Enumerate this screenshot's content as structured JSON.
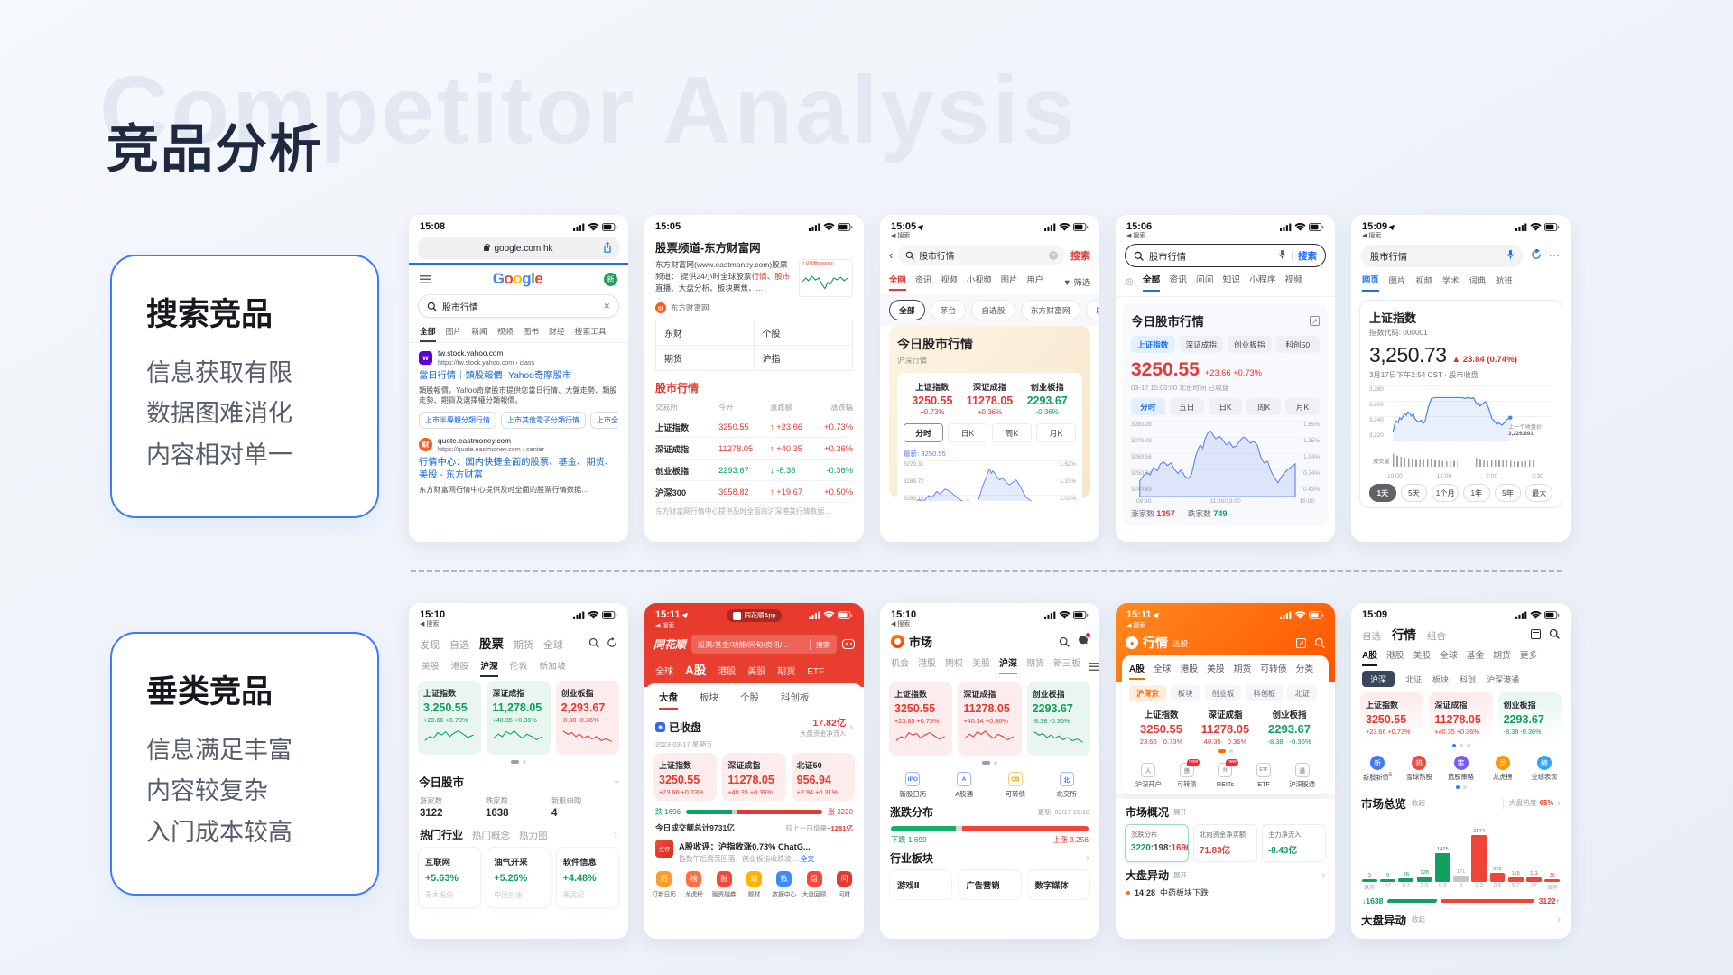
{
  "slide": {
    "title": "竞品分析",
    "watermark": "Competitor Analysis"
  },
  "common": {
    "back_label": "◀ 搜索"
  },
  "cards": [
    {
      "title": "搜索竞品",
      "items": [
        "信息获取有限",
        "数据图难消化",
        "内容相对单一"
      ]
    },
    {
      "title": "垂类竞品",
      "items": [
        "信息满足丰富",
        "内容较复杂",
        "入门成本较高"
      ]
    }
  ],
  "phones": {
    "t1": {
      "time": "15:08",
      "url": "google.com.hk",
      "avatar": "新",
      "search": "股市行情",
      "tabs": [
        "全部",
        "图片",
        "新闻",
        "视频",
        "图书",
        "财经",
        "搜索工具"
      ],
      "r1_site": "tw.stock.yahoo.com",
      "r1_url": "https://tw.stock.yahoo.com › class",
      "r1_title": "當日行情｜類股報價- Yahoo奇摩股市",
      "r1_desc": "類股報價，Yahoo奇摩股市提供您當日行情、大盤走勢、類股走勢、期貨及選擇權分類報價。",
      "r1_chips": [
        "上市半導體分類行情",
        "上市其他電子分類行情",
        "上市全部"
      ],
      "r2_site": "quote.eastmoney.com",
      "r2_url": "https://quote.eastmoney.com › center",
      "r2_title": "行情中心：国内快捷全面的股票、基金、期货、美股 - 东方财富",
      "r2_desc": "东方财富网行情中心提供及时全面的股票行情数据…"
    },
    "t2": {
      "time": "15:05",
      "page_title": "股票频道-东方财富网",
      "desc_1": "东方财富网(www.eastmoney.com)股票频道： 提供24小时全球股票",
      "desc_red1": "行情",
      "desc_2": "、",
      "desc_red2": "股市",
      "desc_3": "直播、大盘分析、板块聚焦、...",
      "thumb_title": "上证指数(000001)",
      "source": "东方财富网",
      "quick_links": [
        "东财",
        "个股",
        "期货",
        "沪指"
      ],
      "section": "股市行情",
      "cols": [
        "交易所",
        "今开",
        "涨跌额",
        "涨跌幅"
      ],
      "rows": [
        {
          "name": "上证指数",
          "open": "3250.55",
          "delta": "↑ +23.66",
          "pct": "+0.73%"
        },
        {
          "name": "深证成指",
          "open": "11278.05",
          "delta": "↑ +40.35",
          "pct": "+0.36%"
        },
        {
          "name": "创业板指",
          "open": "2293.67",
          "delta": "↓ -8.38",
          "pct": "-0.36%"
        },
        {
          "name": "沪深300",
          "open": "3958.82",
          "delta": "↑ +19.67",
          "pct": "+0.50%"
        }
      ],
      "foot": "东方财富网行情中心提供及时全面的沪深港美行情数据…"
    },
    "t3": {
      "time": "15:05",
      "search": "股市行情",
      "search_btn": "搜索",
      "tabs": [
        "全网",
        "资讯",
        "视频",
        "小视频",
        "图片",
        "用户"
      ],
      "filter": "筛选",
      "chips": [
        "全部",
        "茅台",
        "自选股",
        "东方财富网",
        "以岭药业"
      ],
      "card_title": "今日股市行情",
      "card_sub": "沪深行情",
      "indices": [
        {
          "name": "上证指数",
          "value": "3250.55",
          "pct": "+0.73%"
        },
        {
          "name": "深证成指",
          "value": "11278.05",
          "pct": "+0.36%"
        },
        {
          "name": "创业板指",
          "value": "2293.67",
          "pct": "-0.36%"
        }
      ],
      "kline_tabs": [
        "分时",
        "日K",
        "周K",
        "月K"
      ],
      "latest": "最新: 3250.55",
      "y_left": [
        "3279.31",
        "3269.72",
        "3260.13"
      ],
      "y_right": [
        "1.62%",
        "1.33%",
        "1.03%"
      ]
    },
    "t4": {
      "time": "15:06",
      "search": "股市行情",
      "search_btn": "搜索",
      "tabs": [
        "全部",
        "资讯",
        "问问",
        "知识",
        "小程序",
        "视频"
      ],
      "card_title": "今日股市行情",
      "pills": [
        "上证指数",
        "深证成指",
        "创业板指",
        "科创50"
      ],
      "price": "3250.55",
      "chg": "+23.66  +0.73%",
      "meta": "03-17 15:00:00 北京时间  已收盘",
      "kline_tabs": [
        "分时",
        "五日",
        "日K",
        "周K",
        "月K"
      ],
      "y_left": [
        "3280.28",
        "3270.43",
        "3260.58",
        "3250.74",
        "3240.89"
      ],
      "y_right": [
        "1.65%",
        "1.35%",
        "1.04%",
        "0.74%",
        "0.43%"
      ],
      "x": [
        "09:30",
        "11:30/13:00",
        "15:00"
      ],
      "adv_label": "涨家数",
      "adv": "1357",
      "dec_label": "跌家数",
      "dec": "749"
    },
    "t5": {
      "time": "15:09",
      "search": "股市行情",
      "tabs": [
        "网页",
        "图片",
        "视频",
        "学术",
        "词典",
        "航班"
      ],
      "name": "上证指数",
      "code": "指数代码: 000001",
      "price": "3,250.73",
      "chg": "▲ 23.84 (0.74%)",
      "meta": "3月17日下午2:54 CST · 股市收盘",
      "y": [
        "3,280",
        "3,260",
        "3,240",
        "3,220"
      ],
      "anno_label": "上一个收盘价:",
      "anno_value": "3,226.891",
      "vol_label": "成交量",
      "x": [
        "10:00",
        "12:00",
        "2:00",
        "3:30"
      ],
      "ranges": [
        "1天",
        "5天",
        "1个月",
        "1年",
        "5年",
        "最大"
      ]
    },
    "b1": {
      "time": "15:10",
      "nav": [
        "发现",
        "自选",
        "股票",
        "期货",
        "全球"
      ],
      "subtabs": [
        "美股",
        "港股",
        "沪深",
        "伦敦",
        "新加坡"
      ],
      "indices": [
        {
          "name": "上证指数",
          "value": "3,250.55",
          "chg": "+23.66 +0.73%"
        },
        {
          "name": "深证成指",
          "value": "11,278.05",
          "chg": "+40.35 +0.36%"
        },
        {
          "name": "创业板指",
          "value": "2,293.67",
          "chg": "-8.38 -0.36%"
        }
      ],
      "sec1": "今日股市",
      "stats": [
        {
          "label": "涨家数",
          "value": "3122"
        },
        {
          "label": "跌家数",
          "value": "1638"
        },
        {
          "label": "新股申购",
          "value": "4"
        }
      ],
      "sec2_tabs": [
        "热门行业",
        "热门概念",
        "热力图"
      ],
      "hot": [
        {
          "name": "互联网",
          "pct": "+5.63%",
          "stock": "青木股份"
        },
        {
          "name": "油气开采",
          "pct": "+5.26%",
          "stock": "中国石油"
        },
        {
          "name": "软件信息",
          "pct": "+4.48%",
          "stock": "寒武纪"
        }
      ]
    },
    "b2": {
      "time": "15:11",
      "banner": "同花顺App",
      "brand": "同花顺",
      "search_placeholder": "股票/基金/功能/问句/资讯/...",
      "search_btn": "搜索",
      "tabs": [
        "全球",
        "A股",
        "港股",
        "美股",
        "期货",
        "ETF"
      ],
      "subtabs": [
        "大盘",
        "板块",
        "个股",
        "科创板"
      ],
      "closed": "已收盘",
      "date": "2023-03-17 星期五",
      "inflow_value": "17.82亿",
      "inflow_label": "大盘资金净流入",
      "indices": [
        {
          "name": "上证指数",
          "value": "3250.55",
          "chg": "+23.66 +0.73%"
        },
        {
          "name": "深证成指",
          "value": "11278.05",
          "chg": "+40.35 +0.36%"
        },
        {
          "name": "北证50",
          "value": "956.94",
          "chg": "+2.94 +0.31%"
        }
      ],
      "fall": "跌 1696",
      "rise": "涨 3220",
      "turnover": "今日成交额总计9731亿",
      "turnover_note": "较上一日增量",
      "turnover_delta": "+1281亿",
      "review_icon": "点评",
      "review_title": "A股收评：沪指收涨0.73% ChatG...",
      "review_sub": "指数午后震荡回落，创业板指收跌凌…",
      "review_more": "全文",
      "shortcuts": [
        "打新日历",
        "龙虎榜",
        "融资融券",
        "题材",
        "数据中心",
        "大盘回顾",
        "问财"
      ]
    },
    "b3": {
      "time": "15:10",
      "app": "市场",
      "tabs": [
        "机会",
        "港股",
        "期权",
        "美股",
        "沪深",
        "期货",
        "新三板"
      ],
      "indices": [
        {
          "name": "上证指数",
          "value": "3250.55",
          "chg": "+23.65 +0.73%"
        },
        {
          "name": "深证成指",
          "value": "11278.05",
          "chg": "+40.34 +0.36%"
        },
        {
          "name": "创业板指",
          "value": "2293.67",
          "chg": "-8.38 -0.36%"
        }
      ],
      "icons": [
        {
          "glyph": "IPO",
          "label": "新股日历"
        },
        {
          "glyph": "A",
          "label": "A股通"
        },
        {
          "glyph": "CB",
          "label": "可转债"
        },
        {
          "glyph": "北",
          "label": "北交所"
        }
      ],
      "sec1": "涨跌分布",
      "updated": "更新: 03/17 15:10",
      "down_label": "下跌 1,699",
      "up_label": "上涨 3,256",
      "sec2": "行业板块",
      "plates": [
        "游戏Ⅱ",
        "广告营销",
        "数字媒体"
      ]
    },
    "b4": {
      "time": "15:11",
      "app": "行情",
      "app_sub": "选股",
      "tabs": [
        "A股",
        "全球",
        "港股",
        "美股",
        "期货",
        "可转债",
        "分类"
      ],
      "chips": [
        "沪深京",
        "板块",
        "创业板",
        "科创板",
        "北证"
      ],
      "indices": [
        {
          "name": "上证指数",
          "value": "3250.55",
          "chg_a": "23.66",
          "chg_b": "0.73%"
        },
        {
          "name": "深证成指",
          "value": "11278.05",
          "chg_a": "40.35",
          "chg_b": "0.36%"
        },
        {
          "name": "创业板指",
          "value": "2293.67",
          "chg_a": "-8.38",
          "chg_b": "-0.36%"
        }
      ],
      "icons": [
        {
          "glyph": "人",
          "label": "沪深开户",
          "badge": ""
        },
        {
          "glyph": "债",
          "label": "可转债",
          "badge": "new"
        },
        {
          "glyph": "R",
          "label": "REITs",
          "badge": "new"
        },
        {
          "glyph": "ETF",
          "label": "ETF",
          "badge": ""
        },
        {
          "glyph": "通",
          "label": "沪深股通",
          "badge": ""
        }
      ],
      "sec1": "市场概况",
      "toggle1": "展开",
      "stat_cards": [
        {
          "title": "涨跌分布",
          "v1": "3220",
          "v2": ":198:",
          "v3": "1696"
        },
        {
          "title": "北向资金净买额",
          "value": "71.83亿"
        },
        {
          "title": "主力净流入",
          "value": "-8.43亿"
        }
      ],
      "sec2": "大盘异动",
      "toggle2": "展开",
      "alert_time": "14:28",
      "alert_text": "中药板块下跌"
    },
    "b5": {
      "time": "15:09",
      "nav": [
        "自选",
        "行情",
        "组合"
      ],
      "tabs": [
        "A股",
        "港股",
        "美股",
        "全球",
        "基金",
        "期货",
        "更多"
      ],
      "chips": [
        "沪深",
        "北证",
        "板块",
        "科创",
        "沪深港通"
      ],
      "indices": [
        {
          "name": "上证指数",
          "value": "3250.55",
          "chg": "+23.66 +0.73%"
        },
        {
          "name": "深证成指",
          "value": "11278.05",
          "chg": "+40.35 +0.36%"
        },
        {
          "name": "创业板指",
          "value": "2293.67",
          "chg": "-8.38 -0.36%"
        }
      ],
      "icons": [
        {
          "glyph": "新",
          "label": "新股新债",
          "sup": "5"
        },
        {
          "glyph": "热",
          "label": "雪球热股",
          "sup": ""
        },
        {
          "glyph": "策",
          "label": "选股策略",
          "sup": ""
        },
        {
          "glyph": "龙",
          "label": "龙虎榜",
          "sup": ""
        },
        {
          "glyph": "绩",
          "label": "业绩表现",
          "sup": ""
        }
      ],
      "sec1": "市场总览",
      "toggle1": "收起",
      "heat_label": "大盘热度",
      "heat_value": "65%",
      "hist": {
        "values": [
          "3",
          "9",
          "26",
          "128",
          "1475",
          "171",
          "2574",
          "322",
          "115",
          "111",
          "36"
        ],
        "labels": [
          "跌停",
          ">7",
          "5-7",
          "3-5",
          "0-3",
          "0",
          "0-3",
          "3-5",
          "5-7",
          ">7",
          "涨停"
        ]
      },
      "down": "↓1638",
      "up": "3122↑",
      "sec2": "大盘异动",
      "toggle2": "收起"
    }
  }
}
